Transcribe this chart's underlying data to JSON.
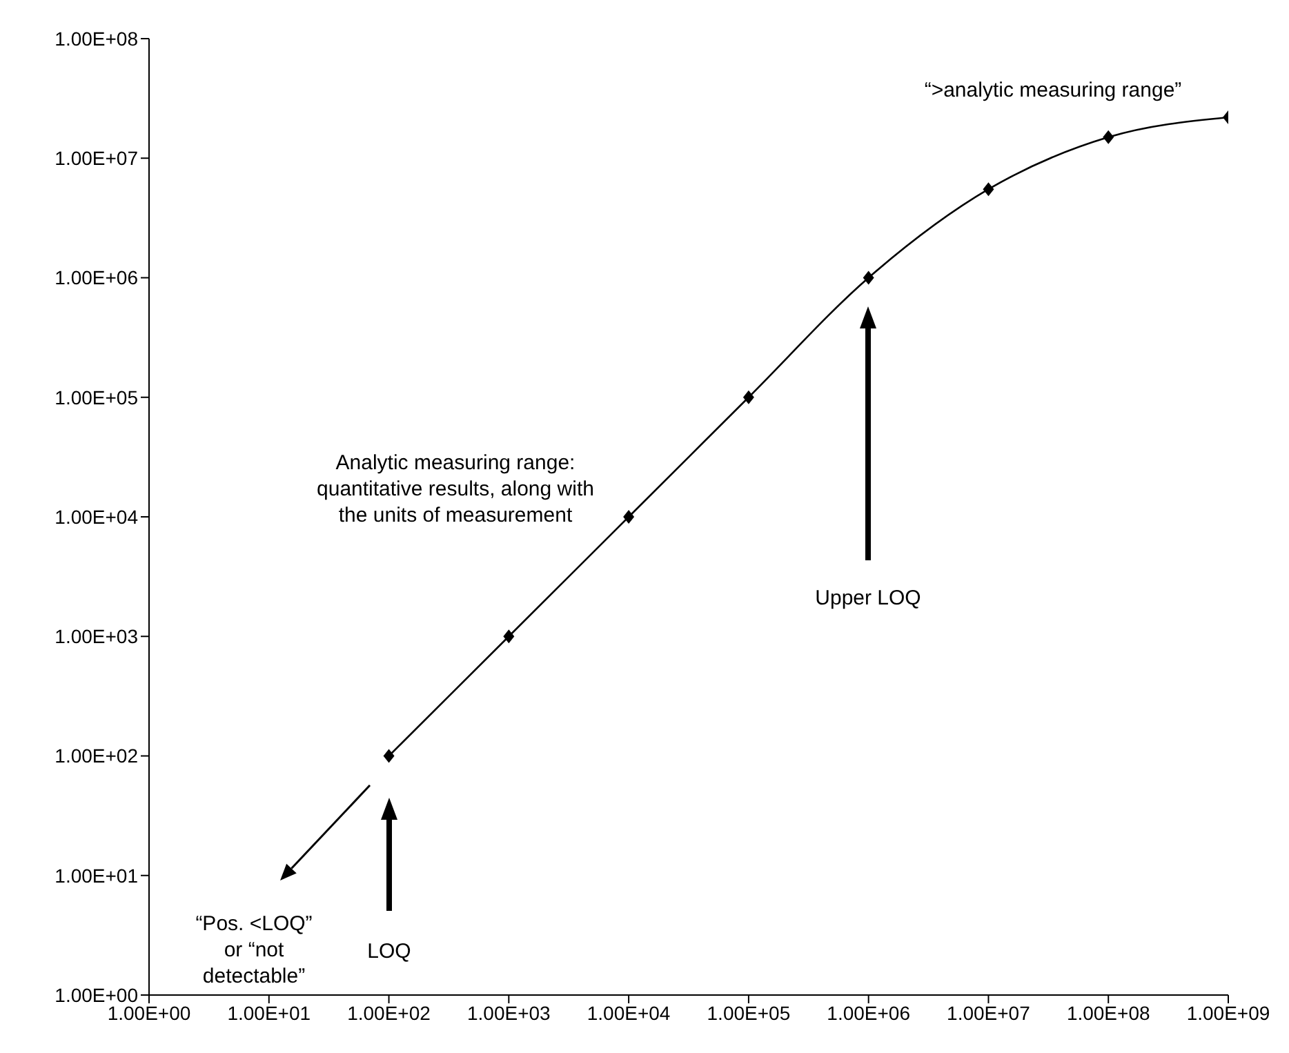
{
  "chart_data": {
    "type": "line",
    "log": "xy",
    "marker": "diamond",
    "line_style": "solid",
    "x": [
      100,
      1000,
      10000,
      100000,
      1000000,
      10000000,
      100000000,
      1000000000
    ],
    "series": [
      {
        "color": "#000000",
        "values": [
          100,
          1000,
          10000,
          100000,
          1000000,
          5500000,
          15000000,
          22000000
        ]
      }
    ],
    "xlim": [
      1,
      1000000000
    ],
    "ylim": [
      1,
      100000000
    ],
    "xticks": [
      {
        "value": 1,
        "label": "1.00E+00"
      },
      {
        "value": 10,
        "label": "1.00E+01"
      },
      {
        "value": 100,
        "label": "1.00E+02"
      },
      {
        "value": 1000,
        "label": "1.00E+03"
      },
      {
        "value": 10000,
        "label": "1.00E+04"
      },
      {
        "value": 100000,
        "label": "1.00E+05"
      },
      {
        "value": 1000000,
        "label": "1.00E+06"
      },
      {
        "value": 10000000,
        "label": "1.00E+07"
      },
      {
        "value": 100000000,
        "label": "1.00E+08"
      },
      {
        "value": 1000000000,
        "label": "1.00E+09"
      }
    ],
    "yticks": [
      {
        "value": 1,
        "label": "1.00E+00"
      },
      {
        "value": 10,
        "label": "1.00E+01"
      },
      {
        "value": 100,
        "label": "1.00E+02"
      },
      {
        "value": 1000,
        "label": "1.00E+03"
      },
      {
        "value": 10000,
        "label": "1.00E+04"
      },
      {
        "value": 100000,
        "label": "1.00E+05"
      },
      {
        "value": 1000000,
        "label": "1.00E+06"
      },
      {
        "value": 10000000,
        "label": "1.00E+07"
      },
      {
        "value": 100000000,
        "label": "1.00E+08"
      }
    ],
    "annotations": [
      "LOQ",
      "Upper LOQ",
      "“Pos. <LOQ” or “not detectable”",
      "Analytic measuring range: quantitative results, along with the units of measurement",
      "“>analytic measuring range”"
    ]
  }
}
